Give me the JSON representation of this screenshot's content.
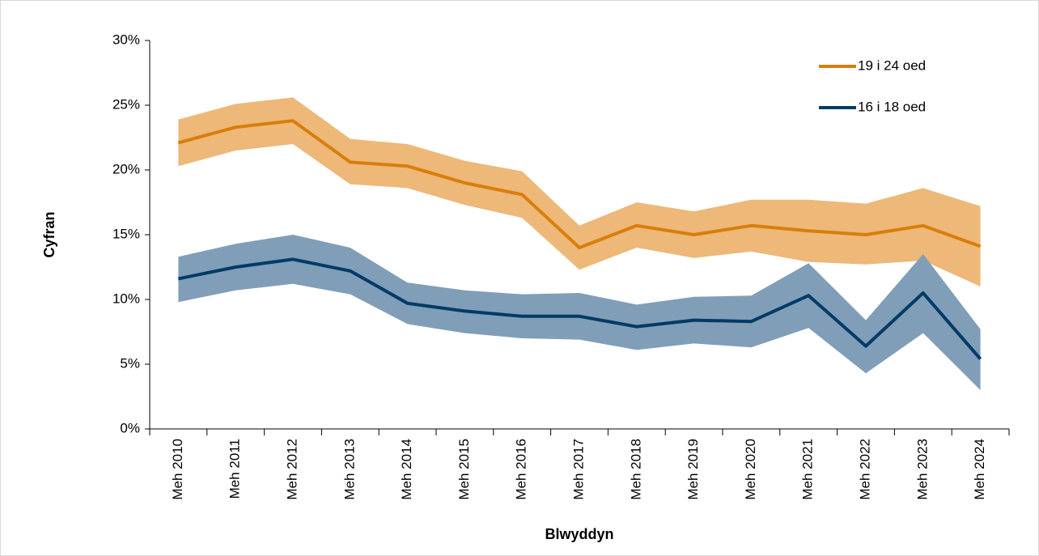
{
  "chart_data": {
    "type": "line",
    "y_label": "Cyfran",
    "x_label": "Blwyddyn",
    "categories": [
      "Meh 2010",
      "Meh 2011",
      "Meh 2012",
      "Meh 2013",
      "Meh 2014",
      "Meh 2015",
      "Meh 2016",
      "Meh 2017",
      "Meh 2018",
      "Meh 2019",
      "Meh 2020",
      "Meh 2021",
      "Meh 2022",
      "Meh 2023",
      "Meh 2024"
    ],
    "series": [
      {
        "name": "19 i 24 oed",
        "color": "#d97d0b",
        "band_color": "#edb878",
        "values": [
          22.1,
          23.3,
          23.8,
          20.6,
          20.3,
          19.0,
          18.1,
          14.0,
          15.7,
          15.0,
          15.7,
          15.3,
          15.0,
          15.7,
          14.1
        ],
        "upper": [
          23.9,
          25.1,
          25.6,
          22.4,
          22.0,
          20.7,
          19.9,
          15.7,
          17.5,
          16.8,
          17.7,
          17.7,
          17.4,
          18.6,
          17.2
        ],
        "lower": [
          20.3,
          21.5,
          22.0,
          18.9,
          18.6,
          17.3,
          16.3,
          12.3,
          14.0,
          13.2,
          13.7,
          12.9,
          12.7,
          13.0,
          11.0
        ]
      },
      {
        "name": "16 i 18 oed",
        "color": "#003a66",
        "band_color": "#809eb8",
        "values": [
          11.6,
          12.5,
          13.1,
          12.2,
          9.7,
          9.1,
          8.7,
          8.7,
          7.9,
          8.4,
          8.3,
          10.3,
          6.4,
          10.5,
          5.4
        ],
        "upper": [
          13.3,
          14.3,
          15.0,
          14.0,
          11.3,
          10.7,
          10.4,
          10.5,
          9.6,
          10.2,
          10.3,
          12.8,
          8.4,
          13.5,
          7.7
        ],
        "lower": [
          9.8,
          10.7,
          11.2,
          10.4,
          8.1,
          7.4,
          7.0,
          6.9,
          6.1,
          6.6,
          6.3,
          7.8,
          4.3,
          7.4,
          3.0
        ]
      }
    ],
    "ylim": [
      0,
      30
    ],
    "yticks": [
      {
        "value": 0,
        "label": "0%"
      },
      {
        "value": 5,
        "label": "5%"
      },
      {
        "value": 10,
        "label": "10%"
      },
      {
        "value": 15,
        "label": "15%"
      },
      {
        "value": 20,
        "label": "20%"
      },
      {
        "value": 25,
        "label": "25%"
      },
      {
        "value": 30,
        "label": "30%"
      }
    ],
    "legend": "top-right"
  }
}
